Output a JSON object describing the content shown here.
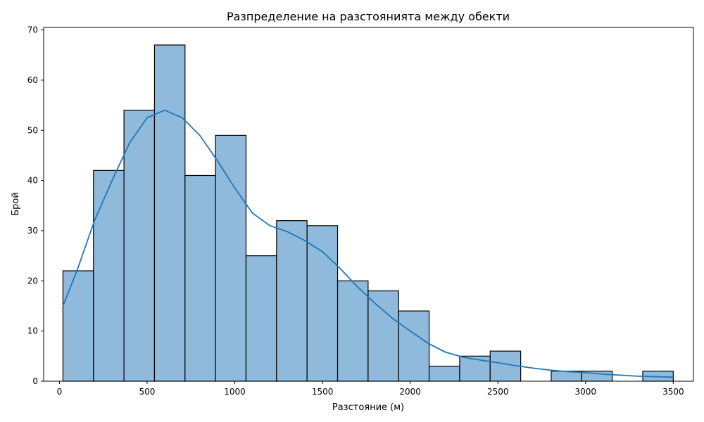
{
  "chart_data": {
    "type": "bar",
    "title": "Разпределение на разстоянията между обекти",
    "xlabel": "Разстояние (м)",
    "ylabel": "Брой",
    "xlim": [
      -90,
      3615
    ],
    "ylim": [
      0,
      70.5
    ],
    "xticks": [
      0,
      500,
      1000,
      1500,
      2000,
      2500,
      3000,
      3500
    ],
    "yticks": [
      0,
      10,
      20,
      30,
      40,
      50,
      60,
      70
    ],
    "bins": [
      {
        "x0": 20,
        "x1": 194,
        "count": 22
      },
      {
        "x0": 194,
        "x1": 368,
        "count": 42
      },
      {
        "x0": 368,
        "x1": 542,
        "count": 54
      },
      {
        "x0": 542,
        "x1": 716,
        "count": 67
      },
      {
        "x0": 716,
        "x1": 890,
        "count": 41
      },
      {
        "x0": 890,
        "x1": 1064,
        "count": 49
      },
      {
        "x0": 1064,
        "x1": 1238,
        "count": 25
      },
      {
        "x0": 1238,
        "x1": 1412,
        "count": 32
      },
      {
        "x0": 1412,
        "x1": 1586,
        "count": 31
      },
      {
        "x0": 1586,
        "x1": 1760,
        "count": 20
      },
      {
        "x0": 1760,
        "x1": 1934,
        "count": 18
      },
      {
        "x0": 1934,
        "x1": 2108,
        "count": 14
      },
      {
        "x0": 2108,
        "x1": 2282,
        "count": 3
      },
      {
        "x0": 2282,
        "x1": 2456,
        "count": 5
      },
      {
        "x0": 2456,
        "x1": 2630,
        "count": 6
      },
      {
        "x0": 2630,
        "x1": 2804,
        "count": 0
      },
      {
        "x0": 2804,
        "x1": 2978,
        "count": 2
      },
      {
        "x0": 2978,
        "x1": 3152,
        "count": 2
      },
      {
        "x0": 3152,
        "x1": 3326,
        "count": 0
      },
      {
        "x0": 3326,
        "x1": 3500,
        "count": 2
      }
    ],
    "kde": {
      "x": [
        20,
        100,
        200,
        300,
        400,
        500,
        600,
        700,
        800,
        900,
        1000,
        1100,
        1200,
        1300,
        1400,
        1500,
        1600,
        1700,
        1800,
        1900,
        2000,
        2100,
        2200,
        2300,
        2400,
        2500,
        2600,
        2700,
        2800,
        2900,
        3000,
        3100,
        3200,
        3300,
        3400,
        3500
      ],
      "y": [
        15,
        22,
        32,
        40,
        47.5,
        52.5,
        54,
        52.5,
        49,
        44,
        38.5,
        33.5,
        31,
        29.8,
        28,
        25.8,
        22.5,
        18.8,
        15.5,
        12.5,
        10,
        7.6,
        5.8,
        4.8,
        4.2,
        3.7,
        3.1,
        2.6,
        2.2,
        1.9,
        1.7,
        1.4,
        1.2,
        1.0,
        0.9,
        0.8
      ]
    },
    "grid": false,
    "legend": "none",
    "colors": {
      "bar_fill": "#8fbadb",
      "bar_edge": "#000000",
      "line": "#1f77b4",
      "axes": "#000000"
    }
  }
}
